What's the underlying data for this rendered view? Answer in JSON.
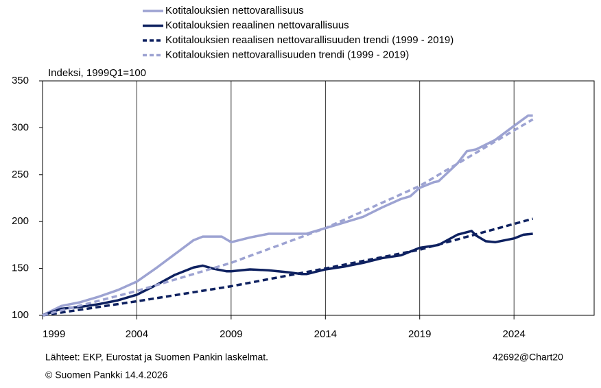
{
  "chart_data": {
    "type": "line",
    "y_label": "Indeksi, 1999Q1=100",
    "xlim": [
      1999,
      2028.25
    ],
    "xticks": [
      1999,
      2004,
      2009,
      2014,
      2019,
      2024
    ],
    "ylim": [
      100,
      350
    ],
    "yticks": [
      100,
      150,
      200,
      250,
      300,
      350
    ],
    "grid": "x",
    "series": [
      {
        "name": "Kotitalouksien nettovarallisuus",
        "color": "#9da3d2",
        "dash": false,
        "x": [
          1999,
          2000,
          2001,
          2002,
          2003,
          2004,
          2005,
          2006,
          2007,
          2007.5,
          2008,
          2008.5,
          2009,
          2010,
          2011,
          2012,
          2013,
          2014,
          2015,
          2016,
          2017,
          2018,
          2018.5,
          2019,
          2019.75,
          2020,
          2021,
          2021.5,
          2022,
          2023,
          2024,
          2024.75,
          2025
        ],
        "values": [
          100,
          110,
          114,
          120,
          127,
          136,
          150,
          165,
          180,
          184,
          184,
          184,
          178,
          183,
          187,
          187,
          187,
          193,
          199,
          205,
          215,
          224,
          227,
          236,
          242,
          243,
          262,
          275,
          277,
          287,
          302,
          313,
          313
        ]
      },
      {
        "name": "Kotitalouksien reaalinen nettovarallisuus",
        "color": "#0e2160",
        "dash": false,
        "x": [
          1999,
          2000,
          2001,
          2002,
          2003,
          2004,
          2005,
          2006,
          2007,
          2007.5,
          2008,
          2008.75,
          2009,
          2010,
          2011,
          2012,
          2012.75,
          2013,
          2014,
          2015,
          2016,
          2017,
          2018,
          2019,
          2020,
          2021,
          2021.75,
          2022,
          2022.5,
          2023,
          2024,
          2024.5,
          2025
        ],
        "values": [
          100,
          107,
          109,
          112,
          116,
          122,
          132,
          143,
          151,
          153,
          150,
          147,
          147,
          149,
          148,
          146,
          144,
          144,
          149,
          152,
          156,
          161,
          164,
          172,
          175,
          186,
          190,
          185,
          179,
          178,
          182,
          186,
          187
        ]
      },
      {
        "name": "Kotitalouksien reaalisen nettovarallisuuden trendi (1999 - 2019)",
        "color": "#0e2160",
        "dash": true,
        "x": [
          1999,
          2004,
          2009,
          2014,
          2019,
          2025
        ],
        "values": [
          100,
          115,
          131,
          150,
          170,
          203
        ]
      },
      {
        "name": "Kotitalouksien nettovarallisuuden trendi (1999 - 2019)",
        "color": "#9da3d2",
        "dash": true,
        "x": [
          1999,
          2004,
          2009,
          2014,
          2019,
          2025
        ],
        "values": [
          100,
          126,
          156,
          193,
          238,
          309
        ]
      }
    ],
    "source": "Lähteet: EKP, Eurostat ja Suomen Pankin laskelmat.",
    "chart_id": "42692@Chart20",
    "copyright": "© Suomen Pankki 14.4.2026"
  }
}
